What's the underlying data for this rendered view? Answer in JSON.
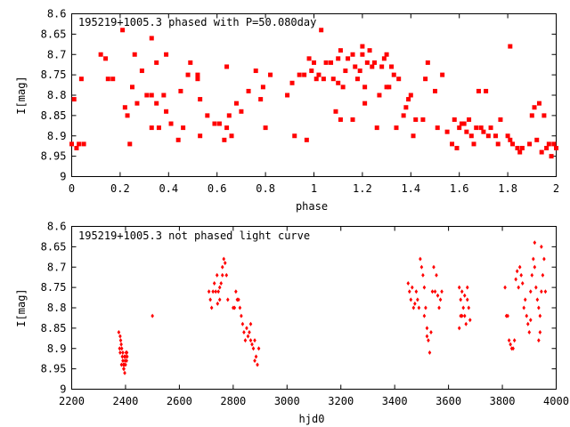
{
  "chart_data": [
    {
      "type": "scatter",
      "title": "195219+1005.3 phased with P=50.080day",
      "xlabel": "phase",
      "ylabel": "I[mag]",
      "xlim": [
        0,
        2
      ],
      "ylim": [
        8.6,
        9.0
      ],
      "y_inverted": true,
      "xticks": [
        "0",
        "0.2",
        "0.4",
        "0.6",
        "0.8",
        "1",
        "1.2",
        "1.4",
        "1.6",
        "1.8",
        "2"
      ],
      "xtick_values": [
        0,
        0.2,
        0.4,
        0.6,
        0.8,
        1.0,
        1.2,
        1.4,
        1.6,
        1.8,
        2.0
      ],
      "yticks": [
        "8.6",
        "8.65",
        "8.7",
        "8.75",
        "8.8",
        "8.85",
        "8.9",
        "8.95",
        "9"
      ],
      "ytick_values": [
        8.6,
        8.65,
        8.7,
        8.75,
        8.8,
        8.85,
        8.9,
        8.95,
        9.0
      ],
      "marker": "filled-square",
      "color": "#ff0000",
      "points": [
        [
          0.0,
          8.92
        ],
        [
          0.01,
          8.81
        ],
        [
          0.02,
          8.93
        ],
        [
          0.03,
          8.92
        ],
        [
          0.04,
          8.76
        ],
        [
          0.05,
          8.92
        ],
        [
          0.12,
          8.7
        ],
        [
          0.14,
          8.71
        ],
        [
          0.15,
          8.76
        ],
        [
          0.17,
          8.76
        ],
        [
          0.21,
          8.64
        ],
        [
          0.22,
          8.83
        ],
        [
          0.23,
          8.85
        ],
        [
          0.24,
          8.92
        ],
        [
          0.25,
          8.78
        ],
        [
          0.26,
          8.7
        ],
        [
          0.27,
          8.82
        ],
        [
          0.29,
          8.74
        ],
        [
          0.31,
          8.8
        ],
        [
          0.33,
          8.66
        ],
        [
          0.33,
          8.8
        ],
        [
          0.33,
          8.88
        ],
        [
          0.35,
          8.72
        ],
        [
          0.35,
          8.82
        ],
        [
          0.36,
          8.88
        ],
        [
          0.38,
          8.8
        ],
        [
          0.39,
          8.84
        ],
        [
          0.39,
          8.7
        ],
        [
          0.41,
          8.87
        ],
        [
          0.44,
          8.91
        ],
        [
          0.45,
          8.79
        ],
        [
          0.46,
          8.88
        ],
        [
          0.48,
          8.75
        ],
        [
          0.49,
          8.72
        ],
        [
          0.52,
          8.76
        ],
        [
          0.52,
          8.75
        ],
        [
          0.53,
          8.9
        ],
        [
          0.53,
          8.81
        ],
        [
          0.56,
          8.85
        ],
        [
          0.59,
          8.87
        ],
        [
          0.61,
          8.87
        ],
        [
          0.63,
          8.91
        ],
        [
          0.64,
          8.73
        ],
        [
          0.64,
          8.88
        ],
        [
          0.65,
          8.85
        ],
        [
          0.66,
          8.9
        ],
        [
          0.68,
          8.82
        ],
        [
          0.7,
          8.84
        ],
        [
          0.73,
          8.79
        ],
        [
          0.76,
          8.74
        ],
        [
          0.78,
          8.81
        ],
        [
          0.79,
          8.78
        ],
        [
          0.8,
          8.88
        ],
        [
          0.82,
          8.75
        ],
        [
          0.89,
          8.8
        ],
        [
          0.91,
          8.77
        ],
        [
          0.92,
          8.9
        ],
        [
          0.94,
          8.75
        ],
        [
          0.96,
          8.75
        ],
        [
          0.97,
          8.91
        ],
        [
          0.98,
          8.71
        ],
        [
          0.99,
          8.74
        ],
        [
          1.0,
          8.72
        ],
        [
          1.01,
          8.76
        ],
        [
          1.02,
          8.75
        ],
        [
          1.03,
          8.64
        ],
        [
          1.04,
          8.76
        ],
        [
          1.05,
          8.72
        ],
        [
          1.07,
          8.72
        ],
        [
          1.08,
          8.76
        ],
        [
          1.09,
          8.84
        ],
        [
          1.1,
          8.71
        ],
        [
          1.1,
          8.77
        ],
        [
          1.11,
          8.69
        ],
        [
          1.11,
          8.86
        ],
        [
          1.12,
          8.78
        ],
        [
          1.13,
          8.74
        ],
        [
          1.14,
          8.71
        ],
        [
          1.16,
          8.7
        ],
        [
          1.16,
          8.86
        ],
        [
          1.17,
          8.73
        ],
        [
          1.18,
          8.76
        ],
        [
          1.19,
          8.74
        ],
        [
          1.2,
          8.68
        ],
        [
          1.2,
          8.7
        ],
        [
          1.21,
          8.78
        ],
        [
          1.21,
          8.82
        ],
        [
          1.22,
          8.72
        ],
        [
          1.23,
          8.69
        ],
        [
          1.24,
          8.73
        ],
        [
          1.25,
          8.72
        ],
        [
          1.26,
          8.88
        ],
        [
          1.27,
          8.8
        ],
        [
          1.28,
          8.73
        ],
        [
          1.29,
          8.71
        ],
        [
          1.3,
          8.78
        ],
        [
          1.3,
          8.7
        ],
        [
          1.31,
          8.78
        ],
        [
          1.32,
          8.73
        ],
        [
          1.33,
          8.75
        ],
        [
          1.34,
          8.88
        ],
        [
          1.35,
          8.76
        ],
        [
          1.37,
          8.85
        ],
        [
          1.38,
          8.83
        ],
        [
          1.39,
          8.81
        ],
        [
          1.4,
          8.8
        ],
        [
          1.41,
          8.9
        ],
        [
          1.42,
          8.86
        ],
        [
          1.45,
          8.86
        ],
        [
          1.46,
          8.76
        ],
        [
          1.47,
          8.72
        ],
        [
          1.5,
          8.79
        ],
        [
          1.51,
          8.88
        ],
        [
          1.53,
          8.75
        ],
        [
          1.55,
          8.89
        ],
        [
          1.57,
          8.92
        ],
        [
          1.58,
          8.86
        ],
        [
          1.59,
          8.93
        ],
        [
          1.6,
          8.88
        ],
        [
          1.61,
          8.87
        ],
        [
          1.62,
          8.87
        ],
        [
          1.63,
          8.89
        ],
        [
          1.64,
          8.86
        ],
        [
          1.65,
          8.9
        ],
        [
          1.66,
          8.92
        ],
        [
          1.67,
          8.88
        ],
        [
          1.68,
          8.79
        ],
        [
          1.69,
          8.88
        ],
        [
          1.7,
          8.89
        ],
        [
          1.71,
          8.79
        ],
        [
          1.72,
          8.9
        ],
        [
          1.73,
          8.88
        ],
        [
          1.75,
          8.9
        ],
        [
          1.76,
          8.92
        ],
        [
          1.77,
          8.86
        ],
        [
          1.8,
          8.9
        ],
        [
          1.81,
          8.68
        ],
        [
          1.81,
          8.91
        ],
        [
          1.82,
          8.92
        ],
        [
          1.84,
          8.93
        ],
        [
          1.85,
          8.94
        ],
        [
          1.86,
          8.93
        ],
        [
          1.89,
          8.92
        ],
        [
          1.9,
          8.85
        ],
        [
          1.91,
          8.83
        ],
        [
          1.92,
          8.91
        ],
        [
          1.93,
          8.82
        ],
        [
          1.94,
          8.94
        ],
        [
          1.95,
          8.85
        ],
        [
          1.96,
          8.93
        ],
        [
          1.97,
          8.92
        ],
        [
          1.98,
          8.95
        ],
        [
          1.99,
          8.92
        ],
        [
          2.0,
          8.93
        ]
      ]
    },
    {
      "type": "scatter",
      "title": "195219+1005.3 not phased light curve",
      "xlabel": "hjd0",
      "ylabel": "I[mag]",
      "xlim": [
        2200,
        4000
      ],
      "ylim": [
        8.6,
        9.0
      ],
      "y_inverted": true,
      "xticks": [
        "2200",
        "2400",
        "2600",
        "2800",
        "3000",
        "3200",
        "3400",
        "3600",
        "3800",
        "4000"
      ],
      "xtick_values": [
        2200,
        2400,
        2600,
        2800,
        3000,
        3200,
        3400,
        3600,
        3800,
        4000
      ],
      "yticks": [
        "8.6",
        "8.65",
        "8.7",
        "8.75",
        "8.8",
        "8.85",
        "8.9",
        "8.95",
        "9"
      ],
      "ytick_values": [
        8.6,
        8.65,
        8.7,
        8.75,
        8.8,
        8.85,
        8.9,
        8.95,
        9.0
      ],
      "marker": "small-diamond",
      "color": "#ff0000",
      "points": [
        [
          2375,
          8.86
        ],
        [
          2378,
          8.9
        ],
        [
          2380,
          8.87
        ],
        [
          2382,
          8.88
        ],
        [
          2384,
          8.89
        ],
        [
          2386,
          8.9
        ],
        [
          2388,
          8.92
        ],
        [
          2390,
          8.93
        ],
        [
          2392,
          8.94
        ],
        [
          2394,
          8.95
        ],
        [
          2396,
          8.92
        ],
        [
          2398,
          8.93
        ],
        [
          2400,
          8.94
        ],
        [
          2402,
          8.91
        ],
        [
          2404,
          8.93
        ],
        [
          2406,
          8.92
        ],
        [
          2380,
          8.91
        ],
        [
          2385,
          8.94
        ],
        [
          2390,
          8.91
        ],
        [
          2395,
          8.94
        ],
        [
          2400,
          8.92
        ],
        [
          2405,
          8.91
        ],
        [
          2393,
          8.95
        ],
        [
          2397,
          8.96
        ],
        [
          2500,
          8.82
        ],
        [
          2710,
          8.76
        ],
        [
          2715,
          8.78
        ],
        [
          2720,
          8.8
        ],
        [
          2725,
          8.76
        ],
        [
          2730,
          8.74
        ],
        [
          2735,
          8.76
        ],
        [
          2740,
          8.72
        ],
        [
          2745,
          8.76
        ],
        [
          2750,
          8.78
        ],
        [
          2755,
          8.74
        ],
        [
          2760,
          8.7
        ],
        [
          2765,
          8.68
        ],
        [
          2770,
          8.69
        ],
        [
          2775,
          8.72
        ],
        [
          2760,
          8.72
        ],
        [
          2750,
          8.75
        ],
        [
          2742,
          8.79
        ],
        [
          2780,
          8.78
        ],
        [
          2800,
          8.8
        ],
        [
          2805,
          8.8
        ],
        [
          2810,
          8.76
        ],
        [
          2815,
          8.78
        ],
        [
          2820,
          8.78
        ],
        [
          2825,
          8.8
        ],
        [
          2830,
          8.82
        ],
        [
          2835,
          8.84
        ],
        [
          2840,
          8.86
        ],
        [
          2845,
          8.88
        ],
        [
          2850,
          8.85
        ],
        [
          2855,
          8.87
        ],
        [
          2860,
          8.86
        ],
        [
          2865,
          8.88
        ],
        [
          2870,
          8.89
        ],
        [
          2875,
          8.9
        ],
        [
          2880,
          8.93
        ],
        [
          2885,
          8.92
        ],
        [
          2890,
          8.94
        ],
        [
          2895,
          8.9
        ],
        [
          2880,
          8.88
        ],
        [
          2865,
          8.84
        ],
        [
          3450,
          8.74
        ],
        [
          3455,
          8.76
        ],
        [
          3460,
          8.78
        ],
        [
          3465,
          8.75
        ],
        [
          3470,
          8.8
        ],
        [
          3475,
          8.79
        ],
        [
          3480,
          8.76
        ],
        [
          3485,
          8.78
        ],
        [
          3490,
          8.8
        ],
        [
          3495,
          8.68
        ],
        [
          3500,
          8.7
        ],
        [
          3505,
          8.72
        ],
        [
          3510,
          8.75
        ],
        [
          3515,
          8.8
        ],
        [
          3520,
          8.85
        ],
        [
          3525,
          8.88
        ],
        [
          3530,
          8.91
        ],
        [
          3535,
          8.86
        ],
        [
          3540,
          8.76
        ],
        [
          3545,
          8.7
        ],
        [
          3550,
          8.76
        ],
        [
          3555,
          8.72
        ],
        [
          3560,
          8.77
        ],
        [
          3565,
          8.8
        ],
        [
          3570,
          8.78
        ],
        [
          3575,
          8.76
        ],
        [
          3510,
          8.82
        ],
        [
          3520,
          8.87
        ],
        [
          3640,
          8.75
        ],
        [
          3645,
          8.78
        ],
        [
          3650,
          8.76
        ],
        [
          3655,
          8.8
        ],
        [
          3660,
          8.82
        ],
        [
          3665,
          8.84
        ],
        [
          3670,
          8.78
        ],
        [
          3675,
          8.8
        ],
        [
          3680,
          8.83
        ],
        [
          3650,
          8.82
        ],
        [
          3660,
          8.77
        ],
        [
          3670,
          8.75
        ],
        [
          3640,
          8.85
        ],
        [
          3645,
          8.82
        ],
        [
          3810,
          8.75
        ],
        [
          3815,
          8.82
        ],
        [
          3820,
          8.82
        ],
        [
          3825,
          8.88
        ],
        [
          3830,
          8.89
        ],
        [
          3835,
          8.9
        ],
        [
          3840,
          8.9
        ],
        [
          3845,
          8.88
        ],
        [
          3850,
          8.73
        ],
        [
          3855,
          8.71
        ],
        [
          3860,
          8.75
        ],
        [
          3865,
          8.7
        ],
        [
          3870,
          8.72
        ],
        [
          3875,
          8.74
        ],
        [
          3880,
          8.8
        ],
        [
          3885,
          8.78
        ],
        [
          3890,
          8.82
        ],
        [
          3895,
          8.84
        ],
        [
          3900,
          8.86
        ],
        [
          3905,
          8.76
        ],
        [
          3910,
          8.72
        ],
        [
          3915,
          8.68
        ],
        [
          3920,
          8.7
        ],
        [
          3925,
          8.75
        ],
        [
          3930,
          8.78
        ],
        [
          3935,
          8.8
        ],
        [
          3940,
          8.82
        ],
        [
          3945,
          8.65
        ],
        [
          3950,
          8.72
        ],
        [
          3955,
          8.68
        ],
        [
          3960,
          8.76
        ],
        [
          3935,
          8.88
        ],
        [
          3940,
          8.86
        ],
        [
          3920,
          8.64
        ],
        [
          3945,
          8.76
        ],
        [
          3905,
          8.83
        ]
      ]
    }
  ]
}
